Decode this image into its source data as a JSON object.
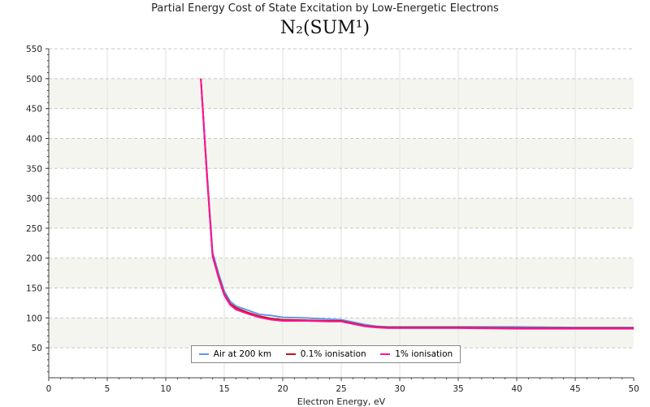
{
  "chart_data": {
    "type": "line",
    "title": "Partial Energy Cost of State Excitation by Low-Energetic Electrons",
    "subtitle": "N₂(SUM¹)",
    "xlabel": "Electron Energy, eV",
    "ylabel": "",
    "xlim": [
      0,
      50
    ],
    "ylim": [
      0,
      550
    ],
    "xticks": [
      0,
      5,
      10,
      15,
      20,
      25,
      30,
      35,
      40,
      45,
      50
    ],
    "yticks": [
      50,
      100,
      150,
      200,
      250,
      300,
      350,
      400,
      450,
      500,
      550
    ],
    "grid": true,
    "legend_position": "bottom-center",
    "x": [
      13,
      13.5,
      14,
      14.5,
      15,
      15.5,
      16,
      17,
      18,
      19,
      20,
      22,
      24,
      25,
      26,
      27,
      28,
      29,
      30,
      35,
      40,
      45,
      50
    ],
    "series": [
      {
        "name": "Air at 200 km",
        "color": "#6495ed",
        "values": [
          500,
          350,
          210,
          175,
          145,
          128,
          120,
          113,
          106,
          104,
          101,
          100,
          98,
          97,
          93,
          89,
          86,
          85,
          85,
          85,
          85,
          84,
          84
        ]
      },
      {
        "name": "0.1% ionisation",
        "color": "#c0141e",
        "values": [
          500,
          345,
          205,
          170,
          140,
          124,
          117,
          109,
          103,
          99,
          97,
          96,
          95,
          95,
          91,
          87,
          85,
          84,
          84,
          84,
          83,
          83,
          83
        ]
      },
      {
        "name": "1% ionisation",
        "color": "#ff1493",
        "values": [
          500,
          345,
          203,
          168,
          138,
          122,
          114,
          107,
          101,
          97,
          95,
          95,
          94,
          94,
          90,
          86,
          84,
          83,
          83,
          83,
          82,
          82,
          82
        ]
      }
    ]
  }
}
